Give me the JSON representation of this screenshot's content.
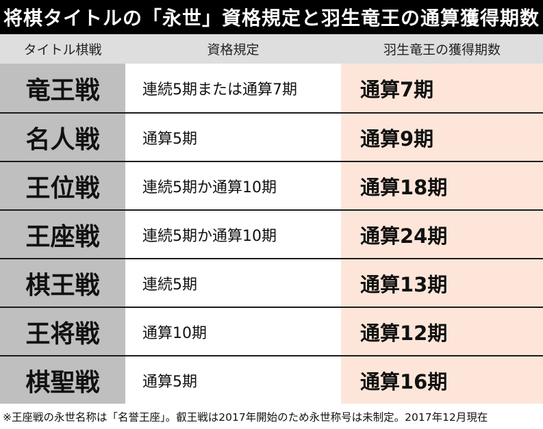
{
  "title": "将棋タイトルの「永世」資格規定と羽生竜王の通算獲得期数",
  "table": {
    "headers": [
      "タイトル棋戦",
      "資格規定",
      "羽生竜王の獲得期数"
    ],
    "rows": [
      {
        "title": "竜王戦",
        "qualification": "連続5期または通算7期",
        "count": "通算7期"
      },
      {
        "title": "名人戦",
        "qualification": "通算5期",
        "count": "通算9期"
      },
      {
        "title": "王位戦",
        "qualification": "連続5期か通算10期",
        "count": "通算18期"
      },
      {
        "title": "王座戦",
        "qualification": "連続5期か通算10期",
        "count": "通算24期"
      },
      {
        "title": "棋王戦",
        "qualification": "連続5期",
        "count": "通算13期"
      },
      {
        "title": "王将戦",
        "qualification": "通算10期",
        "count": "通算12期"
      },
      {
        "title": "棋聖戦",
        "qualification": "通算5期",
        "count": "通算16期"
      }
    ]
  },
  "footnote": "※王座戦の永世名称は「名誉王座」。叡王戦は2017年開始のため永世称号は未制定。2017年12月現在",
  "colors": {
    "title_bar_bg": "#000000",
    "header_bg": "#dedede",
    "title_col_bg": "#bfbfbf",
    "count_col_bg": "#fde6d9"
  }
}
